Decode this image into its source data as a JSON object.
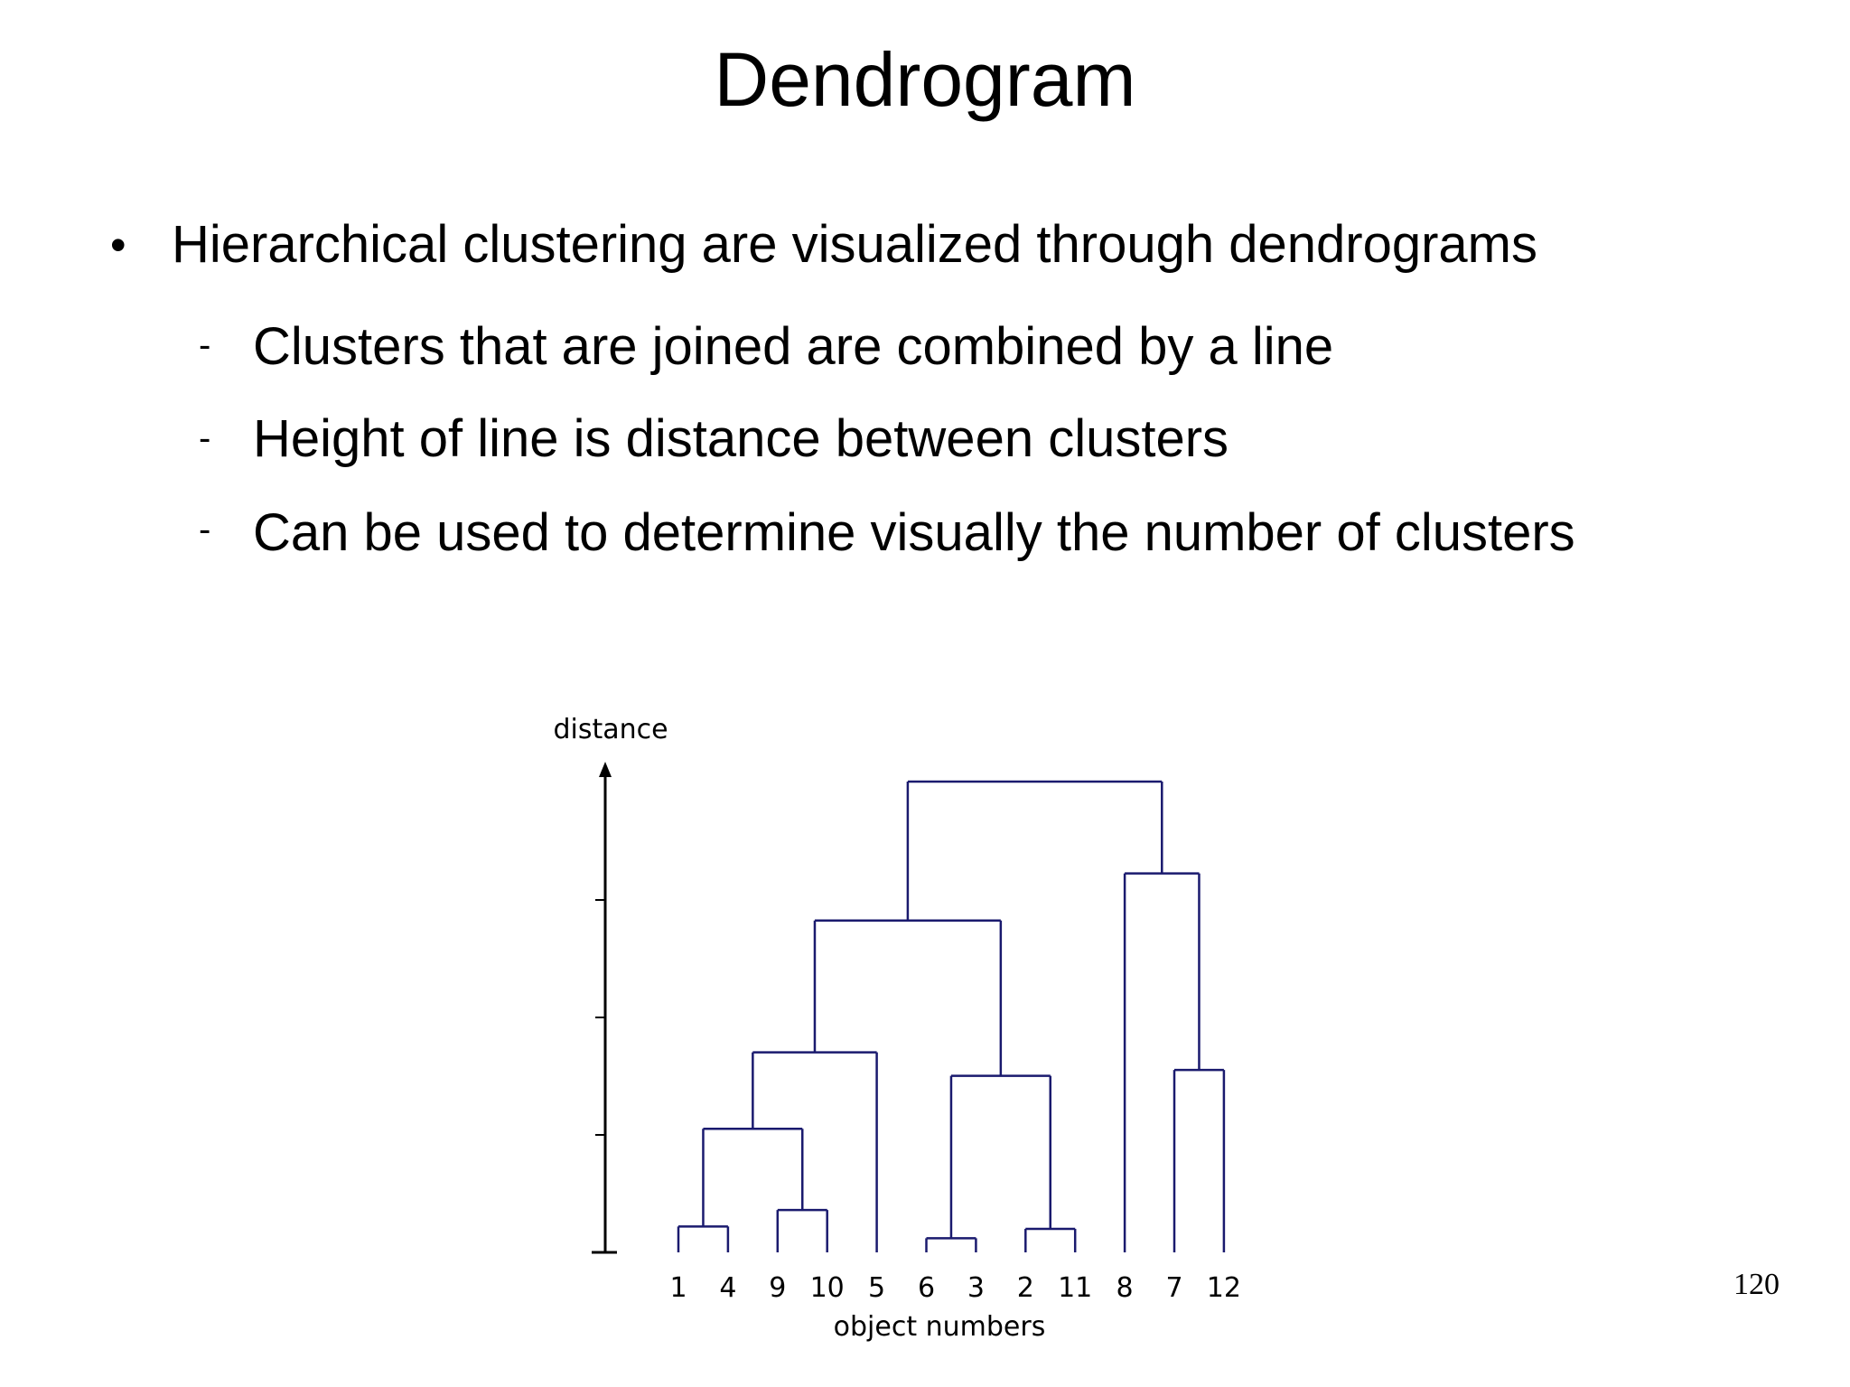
{
  "slide": {
    "title": "Dendrogram",
    "bullet": "Hierarchical clustering are visualized through dendrograms",
    "sub_marker": "-",
    "sub_bullets": [
      "Clusters that are joined are combined by a line",
      "Height of line is distance between clusters",
      "Can be used to determine visually the number of clusters"
    ],
    "page_number": "120"
  },
  "figure": {
    "y_axis_label": "distance",
    "x_axis_label": "object numbers",
    "leaf_order": [
      "1",
      "4",
      "9",
      "10",
      "5",
      "6",
      "3",
      "2",
      "11",
      "8",
      "7",
      "12"
    ],
    "line_color": "#1a1a6e",
    "merges": [
      {
        "left": "1",
        "right": "4",
        "height": 0.22
      },
      {
        "left": "9",
        "right": "10",
        "height": 0.36
      },
      {
        "left": "6",
        "right": "3",
        "height": 0.12
      },
      {
        "left": "2",
        "right": "11",
        "height": 0.2
      },
      {
        "left": "7",
        "right": "12",
        "height": 1.55
      },
      {
        "left": "1,4",
        "right": "9,10",
        "height": 1.05
      },
      {
        "left": "1,4,9,10",
        "right": "5",
        "height": 1.7
      },
      {
        "left": "6,3",
        "right": "2,11",
        "height": 1.5
      },
      {
        "left": "1,4,9,10,5",
        "right": "6,3,2,11",
        "height": 2.82
      },
      {
        "left": "8",
        "right": "7,12",
        "height": 3.22
      },
      {
        "left": "1,4,9,10,5,6,3,2,11",
        "right": "8,7,12",
        "height": 4.0
      }
    ]
  }
}
